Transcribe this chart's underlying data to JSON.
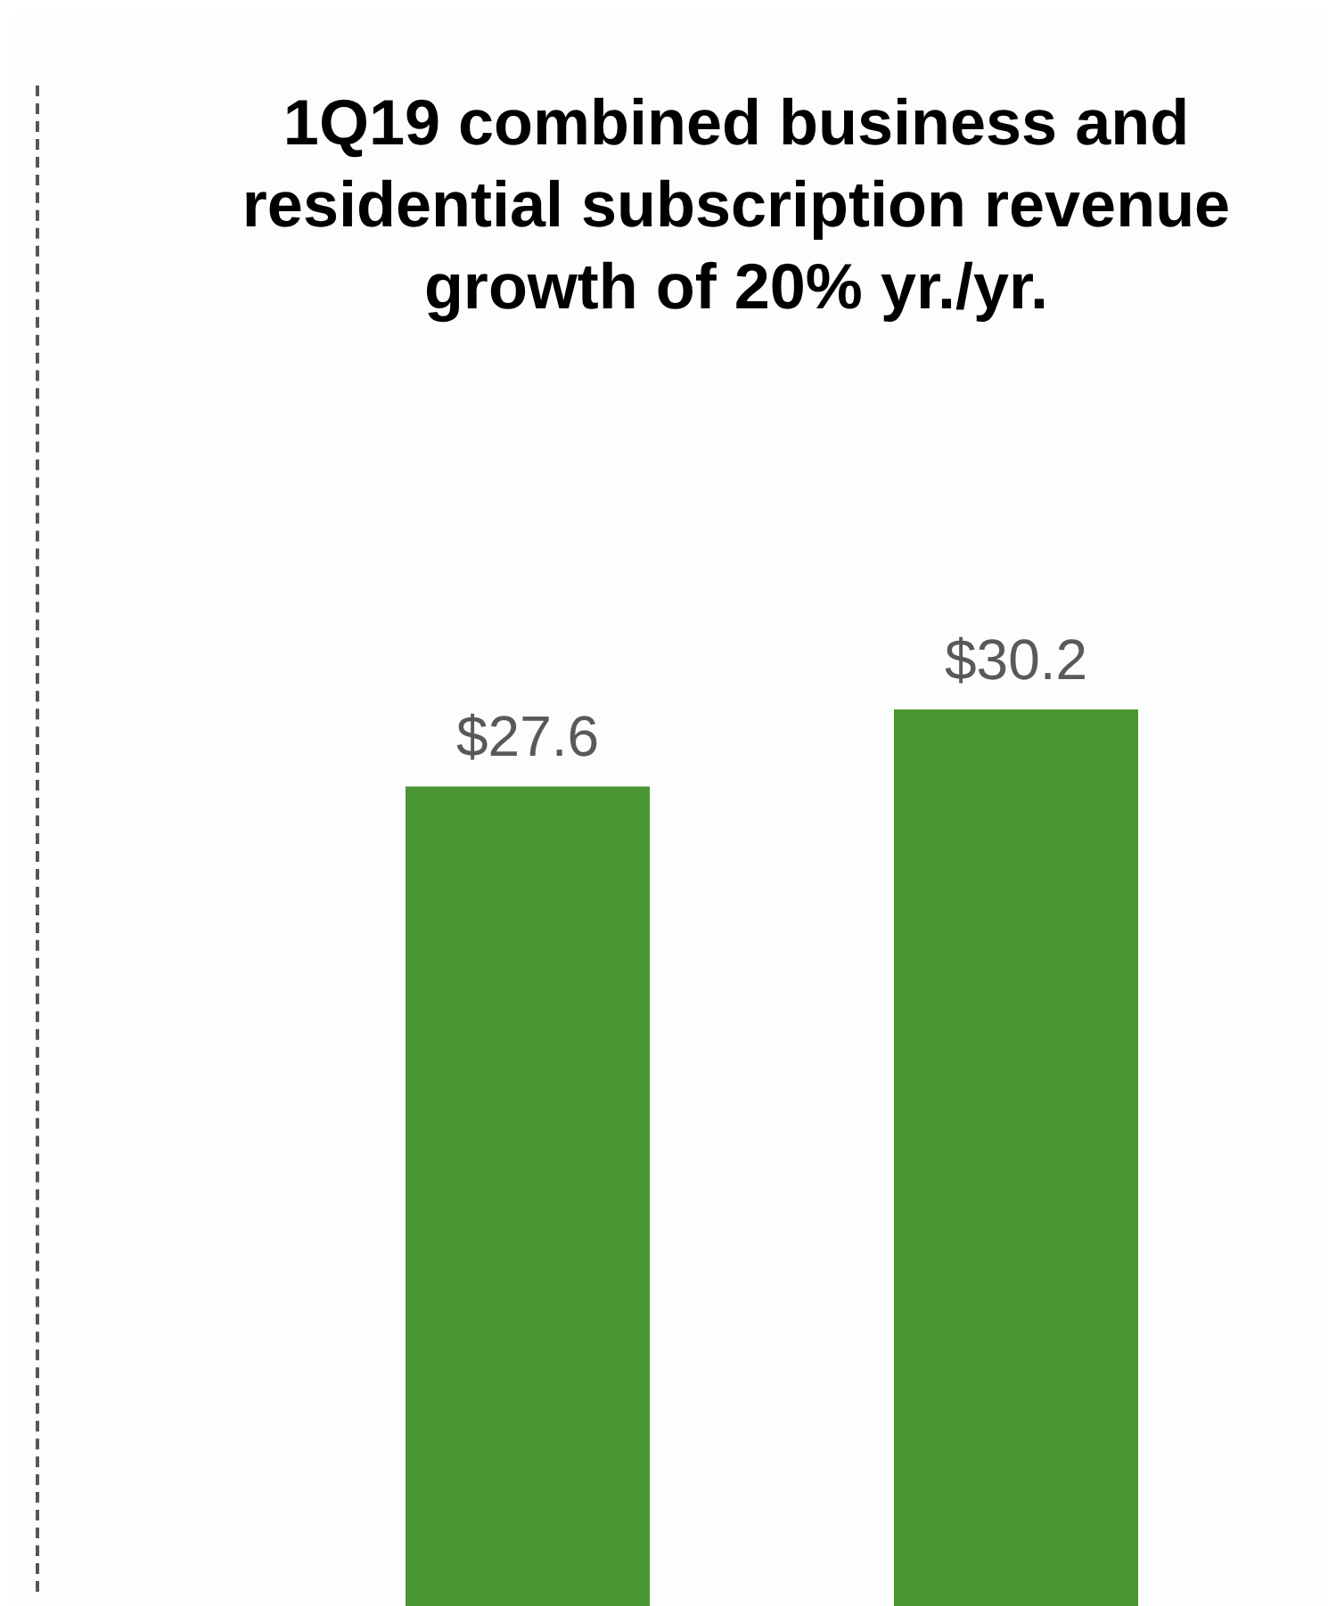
{
  "chart_data": {
    "type": "bar",
    "title": "1Q19 combined business and residential subscription revenue growth of 20% yr./yr.",
    "categories": [
      null,
      null
    ],
    "values": [
      27.6,
      30.2
    ],
    "value_labels": [
      "$27.6",
      "$30.2"
    ],
    "color": "#4a9632",
    "tick_labels": false,
    "legend": false
  }
}
